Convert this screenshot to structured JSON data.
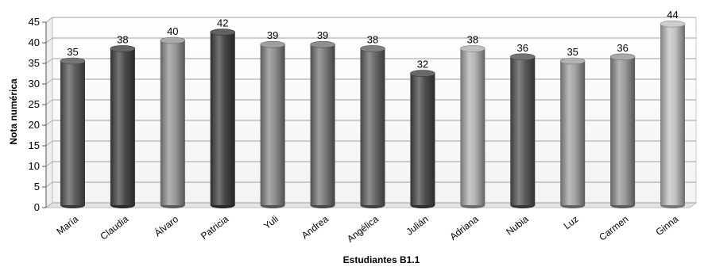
{
  "chart_data": {
    "type": "bar",
    "style": "3d-cylinder",
    "categories": [
      "María",
      "Claudia",
      "Álvaro",
      "Patricia",
      "Yuli",
      "Andrea",
      "Angélica",
      "Julián",
      "Adriana",
      "Nubia",
      "Luz",
      "Carmen",
      "Ginna"
    ],
    "values": [
      35,
      38,
      40,
      42,
      39,
      39,
      38,
      32,
      38,
      36,
      35,
      36,
      44
    ],
    "bar_colors": [
      "#5e5e5e",
      "#4a4a4a",
      "#9a9a9a",
      "#454545",
      "#8e8e8e",
      "#7a7a7a",
      "#6a6a6a",
      "#4e4e4e",
      "#b4b4b4",
      "#5a5a5a",
      "#a4a4a4",
      "#9a9a9a",
      "#c4c4c4"
    ],
    "xlabel": "Estudiantes B1.1",
    "ylabel": "Nota numérica",
    "ylim": [
      0,
      45
    ],
    "yticks": [
      0,
      5,
      10,
      15,
      20,
      25,
      30,
      35,
      40,
      45
    ],
    "grid": true,
    "legend": "none"
  }
}
